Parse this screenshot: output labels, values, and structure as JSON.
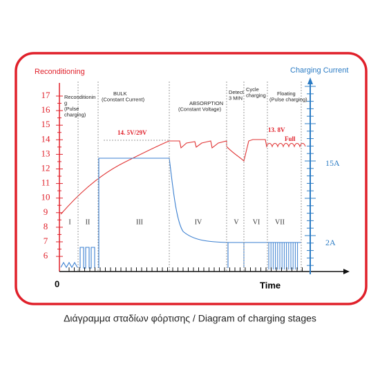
{
  "left_axis": {
    "title": "Reconditioning",
    "ticks": [
      "17",
      "16",
      "15",
      "14",
      "13",
      "12",
      "11",
      "10",
      "9",
      "8",
      "7",
      "6"
    ]
  },
  "right_axis": {
    "title": "Charging Current",
    "labels": [
      "15A",
      "2A"
    ]
  },
  "x_axis": {
    "origin": "0",
    "title": "Time"
  },
  "stages": [
    {
      "numeral": "I",
      "text": [
        "Reconditionin",
        "g",
        "(Pulse",
        "charging)"
      ]
    },
    {
      "numeral": "II",
      "text": []
    },
    {
      "numeral": "III",
      "text": [
        "BULK",
        "(Constant Current)"
      ]
    },
    {
      "numeral": "IV",
      "text": [
        "ABSORPTION",
        "(Constant Voltage)"
      ]
    },
    {
      "numeral": "V",
      "text": [
        "Detect",
        "3 MIN"
      ]
    },
    {
      "numeral": "VI",
      "text": [
        "Cycle",
        "charging"
      ]
    },
    {
      "numeral": "VII",
      "text": [
        "Floating",
        "(Pulse charging)"
      ]
    }
  ],
  "annotations": {
    "bulk_voltage": "14. 5V/29V",
    "float_voltage": "13. 8V",
    "full": "Full"
  },
  "caption": "Διάγραμμα σταδίων φόρτισης / Diagram of charging stages"
}
